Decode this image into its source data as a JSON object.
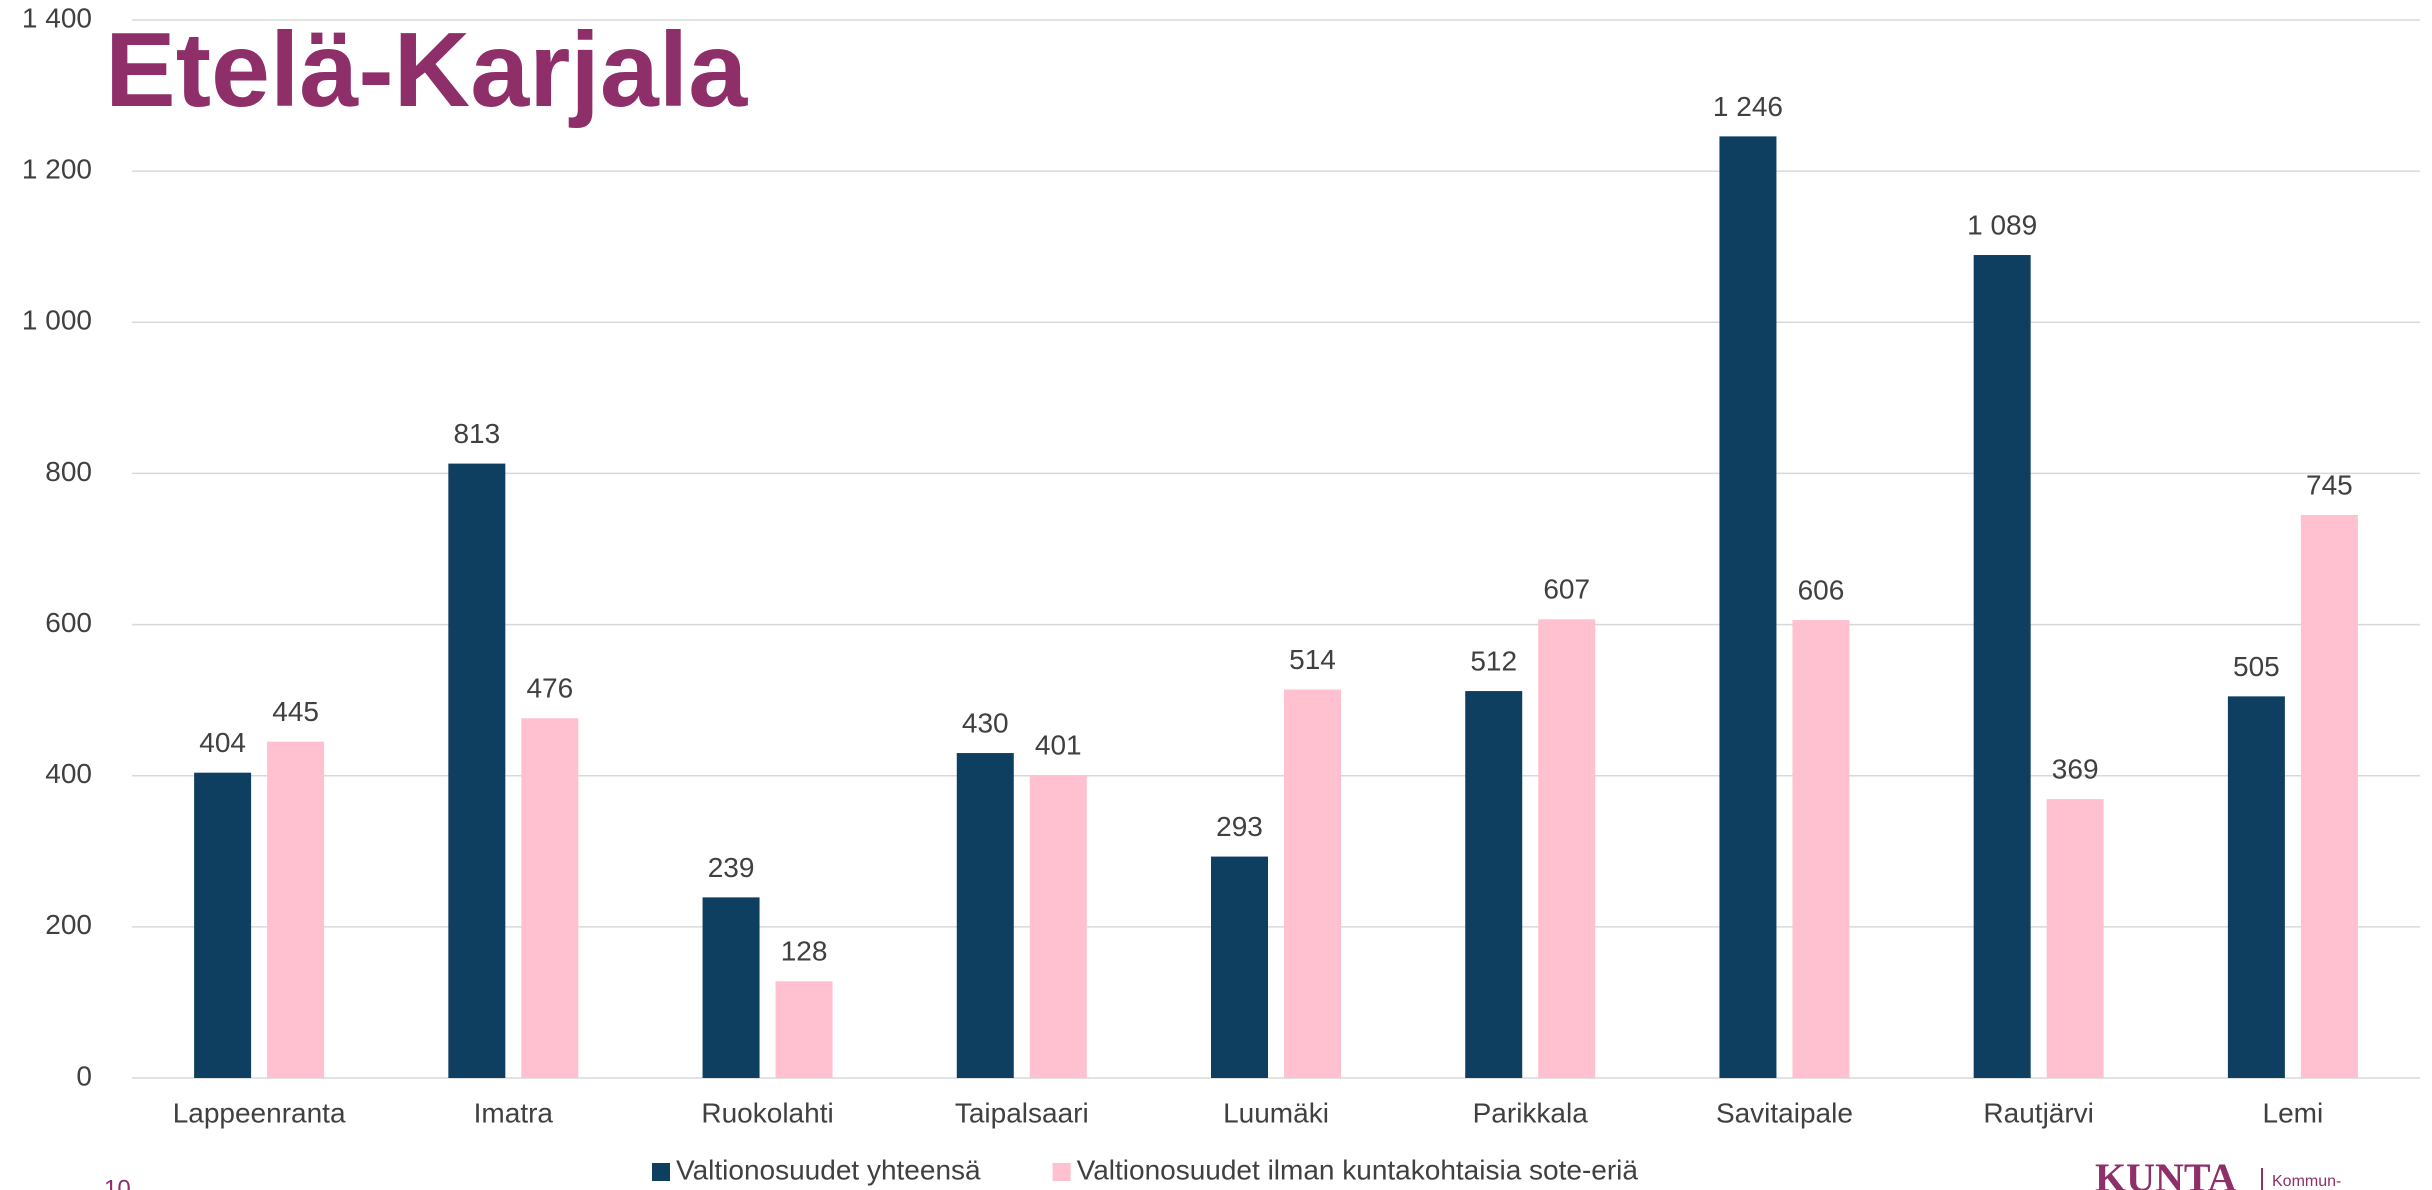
{
  "chart_data": {
    "type": "bar",
    "title": "Etelä-Karjala",
    "categories": [
      "Lappeenranta",
      "Imatra",
      "Ruokolahti",
      "Taipalsaari",
      "Luumäki",
      "Parikkala",
      "Savitaipale",
      "Rautjärvi",
      "Lemi"
    ],
    "series": [
      {
        "name": "Valtionosuudet yhteensä",
        "color": "#0f3f60",
        "values": [
          404,
          813,
          239,
          430,
          293,
          512,
          1246,
          1089,
          505
        ],
        "value_labels": [
          "404",
          "813",
          "239",
          "430",
          "293",
          "512",
          "1 246",
          "1 089",
          "505"
        ]
      },
      {
        "name": "Valtionosuudet ilman kuntakohtaisia sote-eriä",
        "color": "#ffc0cf",
        "values": [
          445,
          476,
          128,
          401,
          514,
          607,
          606,
          369,
          745
        ],
        "value_labels": [
          "445",
          "476",
          "128",
          "401",
          "514",
          "607",
          "606",
          "369",
          "745"
        ]
      }
    ],
    "ylim": [
      0,
      1400
    ],
    "yticks": [
      0,
      200,
      400,
      600,
      800,
      {
        "value": 1000,
        "label": "1 000"
      },
      {
        "value": 1200,
        "label": "1 200"
      },
      {
        "value": 1400,
        "label": "1 400"
      }
    ],
    "grid": true,
    "legend": "bottom"
  },
  "footer": {
    "page_number": "10",
    "logo": "KUNTA",
    "logo_sub": "Kommun-"
  }
}
